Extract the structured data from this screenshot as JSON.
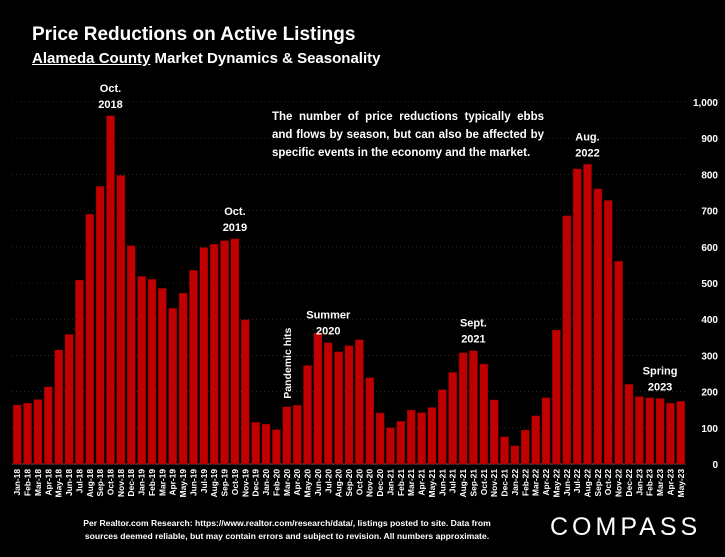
{
  "title": "Price Reductions on Active Listings",
  "subtitle": {
    "county": "Alameda County",
    "rest": " Market Dynamics & Seasonality"
  },
  "note": "The number of price reductions typically ebbs and flows by season, but can also be affected by specific events in the economy and the market.",
  "source": {
    "line1": "Per Realtor.com Research:  https://www.realtor.com/research/data/, listings posted to site. Data from",
    "line2": "sources deemed reliable, but may contain errors and subject to revision. All numbers approximate."
  },
  "brand": "COMPASS",
  "chart_data": {
    "type": "bar",
    "title": "Price Reductions on Active Listings",
    "bar_color": "#c00000",
    "ylim": [
      0,
      1000
    ],
    "yticks": [
      "0",
      "100",
      "200",
      "300",
      "400",
      "500",
      "600",
      "700",
      "800",
      "900",
      "1,000"
    ],
    "ytick_values": [
      0,
      100,
      200,
      300,
      400,
      500,
      600,
      700,
      800,
      900,
      1000
    ],
    "categories": [
      "Jan-18",
      "Feb-18",
      "Mar-18",
      "Apr-18",
      "May-18",
      "Jun-18",
      "Jul-18",
      "Aug-18",
      "Sep-18",
      "Oct-18",
      "Nov-18",
      "Dec-18",
      "Jan-19",
      "Feb-19",
      "Mar-19",
      "Apr-19",
      "May-19",
      "Jun-19",
      "Jul-19",
      "Aug-19",
      "Sep-19",
      "Oct-19",
      "Nov-19",
      "Dec-19",
      "Jan-20",
      "Feb-20",
      "Mar-20",
      "Apr-20",
      "May-20",
      "Jun-20",
      "Jul-20",
      "Aug-20",
      "Sep-20",
      "Oct-20",
      "Nov-20",
      "Dec-20",
      "Jan-21",
      "Feb-21",
      "Mar-21",
      "Apr-21",
      "May-21",
      "Jun-21",
      "Jul-21",
      "Aug-21",
      "Sep-21",
      "Oct-21",
      "Nov-21",
      "Dec-21",
      "Jan-22",
      "Feb-22",
      "Mar-22",
      "Apr-22",
      "May-22",
      "Jun-22",
      "Jul-22",
      "Aug-22",
      "Sep-22",
      "Oct-22",
      "Nov-22",
      "Dec-22",
      "Jan-23",
      "Feb-23",
      "Mar-23",
      "Apr-23",
      "May-23"
    ],
    "values": [
      163,
      168,
      178,
      213,
      315,
      358,
      508,
      690,
      767,
      962,
      797,
      603,
      518,
      510,
      485,
      430,
      472,
      535,
      598,
      607,
      617,
      622,
      398,
      115,
      110,
      95,
      158,
      162,
      272,
      362,
      335,
      310,
      327,
      343,
      238,
      141,
      100,
      118,
      149,
      142,
      156,
      205,
      253,
      307,
      313,
      276,
      177,
      75,
      50,
      94,
      133,
      183,
      370,
      686,
      815,
      828,
      760,
      728,
      560,
      220,
      186,
      183,
      181,
      168,
      173
    ],
    "annotations": [
      {
        "lines": [
          "Oct.",
          "2018"
        ],
        "index": 9
      },
      {
        "lines": [
          "Oct.",
          "2019"
        ],
        "index": 21
      },
      {
        "lines": [
          "Summer",
          "2020"
        ],
        "index": 30
      },
      {
        "lines": [
          "Sept.",
          "2021"
        ],
        "index": 44
      },
      {
        "lines": [
          "Aug.",
          "2022"
        ],
        "index": 55
      },
      {
        "lines": [
          "Spring",
          "2023"
        ],
        "index": 62
      }
    ],
    "vertical_annotation": {
      "text": "Pandemic hits",
      "index": 26
    }
  }
}
